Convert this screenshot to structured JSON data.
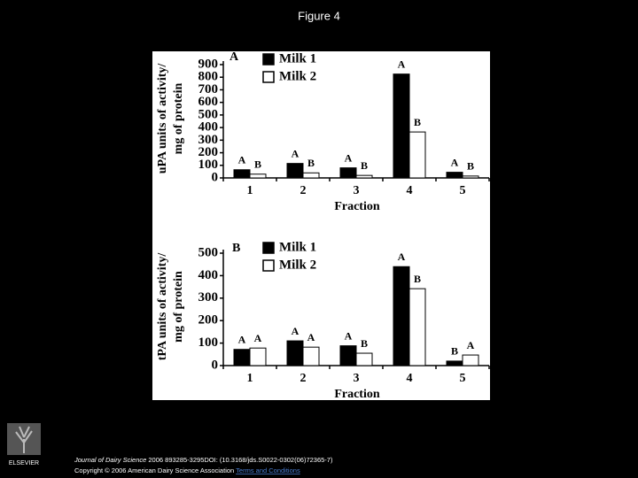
{
  "slide_title": "Figure 4",
  "logo": "ELSEVIER",
  "footer": {
    "journal": "Journal of Dairy Science",
    "citation": "2006 893285-3295DOI: (10.3168/jds.S0022-0302(06)72365-7)",
    "copyright": "Copyright © 2006 American Dairy Science Association",
    "link": "Terms and Conditions"
  },
  "chart_data": [
    {
      "type": "bar",
      "panel_label": "A",
      "ylabel": [
        "uPA units of activity/",
        "mg of protein"
      ],
      "xlabel": "Fraction",
      "categories": [
        "1",
        "2",
        "3",
        "4",
        "5"
      ],
      "series": [
        {
          "name": "Milk 1",
          "color": "#000000",
          "values": [
            65,
            115,
            80,
            825,
            45
          ],
          "letters": [
            "A",
            "A",
            "A",
            "A",
            "A"
          ]
        },
        {
          "name": "Milk 2",
          "color": "#ffffff",
          "values": [
            30,
            40,
            20,
            365,
            15
          ],
          "letters": [
            "B",
            "B",
            "B",
            "B",
            "B"
          ]
        }
      ],
      "ylim": [
        0,
        900
      ],
      "yticks": [
        0,
        100,
        200,
        300,
        400,
        500,
        600,
        700,
        800,
        900
      ]
    },
    {
      "type": "bar",
      "panel_label": "B",
      "ylabel": [
        "tPA units of activity/",
        "mg of protein"
      ],
      "xlabel": "Fraction",
      "categories": [
        "1",
        "2",
        "3",
        "4",
        "5"
      ],
      "series": [
        {
          "name": "Milk 1",
          "color": "#000000",
          "values": [
            72,
            110,
            88,
            440,
            20
          ],
          "letters": [
            "A",
            "A",
            "A",
            "A",
            "B"
          ]
        },
        {
          "name": "Milk 2",
          "color": "#ffffff",
          "values": [
            78,
            82,
            55,
            342,
            47
          ],
          "letters": [
            "A",
            "A",
            "B",
            "B",
            "A"
          ]
        }
      ],
      "ylim": [
        0,
        500
      ],
      "yticks": [
        0,
        100,
        200,
        300,
        400,
        500
      ]
    }
  ]
}
